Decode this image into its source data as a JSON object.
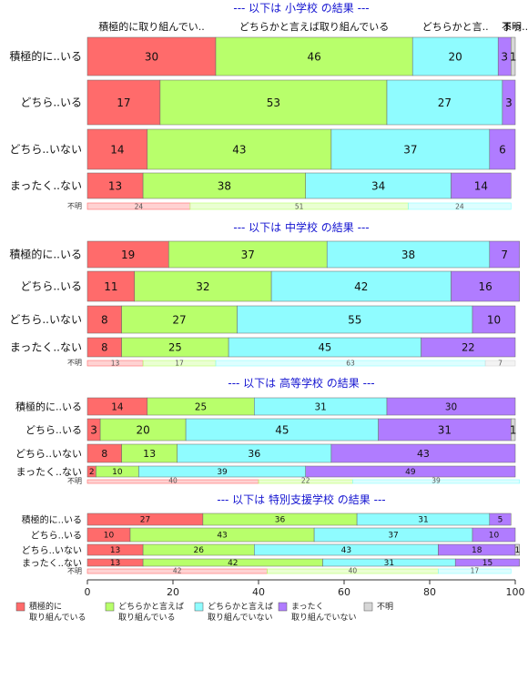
{
  "chart_data": {
    "type": "bar",
    "orientation": "horizontal",
    "stacked": true,
    "xlim": [
      0,
      100
    ],
    "x_ticks": [
      "0",
      "20",
      "40",
      "60",
      "80",
      "100"
    ],
    "legend_position": "bottom",
    "colors": {
      "積極的に取り組んでいる": "#ff6b6b",
      "どちらかと言えば取り組んでいる": "#b8ff6b",
      "どちらかと言えば取り組んでいない": "#8ffcff",
      "まったく取り組んでいない": "#b07cff",
      "不明": "#d7d7d7"
    },
    "legend": [
      {
        "key": "積極的に取り組んでいる",
        "line1": "積極的に",
        "line2": "取り組んでいる"
      },
      {
        "key": "どちらかと言えば取り組んでいる",
        "line1": "どちらかと言えば",
        "line2": "取り組んでいる"
      },
      {
        "key": "どちらかと言えば取り組んでいない",
        "line1": "どちらかと言えば",
        "line2": "取り組んでいない"
      },
      {
        "key": "まったく取り組んでいない",
        "line1": "まったく",
        "line2": "取り組んでいない"
      },
      {
        "key": "不明",
        "line1": "不明",
        "line2": ""
      }
    ],
    "panels": [
      {
        "title": "--- 以下は 小学校 の結果 ---",
        "top_labels": [
          "積極的に取り組んでい..",
          "どちらかと言えば取り組んでいる",
          "どちらかと言..",
          "まっ..",
          "不明"
        ],
        "rows": [
          {
            "label": "積極的に..いる",
            "values": [
              30,
              46,
              20,
              3,
              1
            ]
          },
          {
            "label": "どちら..いる",
            "values": [
              17,
              53,
              27,
              3,
              0
            ]
          },
          {
            "label": "どちら..いない",
            "values": [
              14,
              43,
              37,
              6,
              0
            ]
          },
          {
            "label": "まったく..ない",
            "values": [
              13,
              38,
              34,
              14,
              0
            ]
          }
        ],
        "unknown_label": "不明",
        "unknown_values": [
          24,
          51,
          24,
          0,
          0
        ]
      },
      {
        "title": "--- 以下は 中学校 の結果 ---",
        "top_labels": [],
        "rows": [
          {
            "label": "積極的に..いる",
            "values": [
              19,
              37,
              38,
              7,
              0
            ]
          },
          {
            "label": "どちら..いる",
            "values": [
              11,
              32,
              42,
              16,
              0
            ]
          },
          {
            "label": "どちら..いない",
            "values": [
              8,
              27,
              55,
              10,
              0
            ]
          },
          {
            "label": "まったく..ない",
            "values": [
              8,
              25,
              45,
              22,
              0
            ]
          }
        ],
        "unknown_label": "不明",
        "unknown_values": [
          13,
          17,
          63,
          0,
          7
        ]
      },
      {
        "title": "--- 以下は 高等学校 の結果 ---",
        "top_labels": [],
        "rows": [
          {
            "label": "積極的に..いる",
            "values": [
              14,
              25,
              31,
              30,
              0
            ]
          },
          {
            "label": "どちら..いる",
            "values": [
              3,
              20,
              45,
              31,
              1
            ]
          },
          {
            "label": "どちら..いない",
            "values": [
              8,
              13,
              36,
              43,
              0
            ]
          },
          {
            "label": "まったく..ない",
            "values": [
              2,
              10,
              39,
              49,
              0
            ]
          }
        ],
        "unknown_label": "不明",
        "unknown_values": [
          40,
          22,
          39,
          0,
          0
        ]
      },
      {
        "title": "--- 以下は 特別支援学校 の結果 ---",
        "top_labels": [],
        "rows": [
          {
            "label": "積極的に..いる",
            "values": [
              27,
              36,
              31,
              5,
              0
            ]
          },
          {
            "label": "どちら..いる",
            "values": [
              10,
              43,
              37,
              10,
              0
            ]
          },
          {
            "label": "どちら..いない",
            "values": [
              13,
              26,
              43,
              18,
              1
            ]
          },
          {
            "label": "まったく..ない",
            "values": [
              13,
              42,
              31,
              15,
              0
            ]
          }
        ],
        "unknown_label": "不明",
        "unknown_values": [
          42,
          40,
          17,
          0,
          0
        ]
      }
    ]
  }
}
